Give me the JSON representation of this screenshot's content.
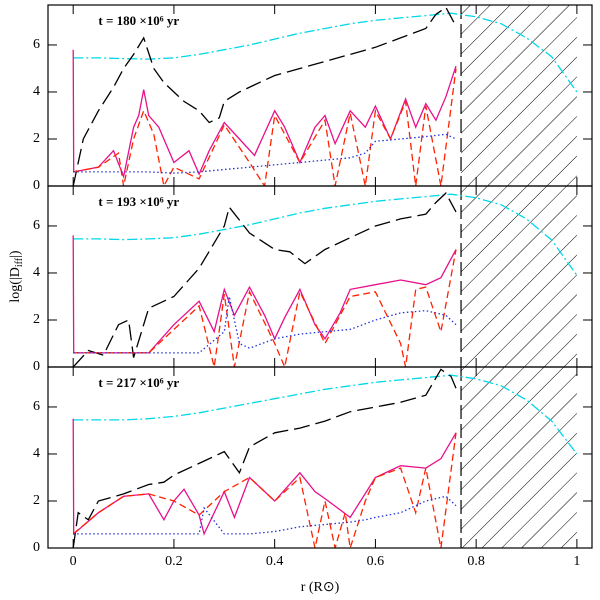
{
  "chart_data": [
    {
      "type": "line",
      "title": "t = 180 ×10⁶ yr",
      "xlim": [
        -0.05,
        1.03
      ],
      "ylim": [
        0,
        7.7
      ],
      "yticks": [
        0,
        2,
        4,
        6
      ],
      "xticks": [
        0,
        0.2,
        0.4,
        0.6,
        0.8,
        1
      ],
      "hatched_region": [
        0.77,
        1.0
      ],
      "series": [
        {
          "color": "#00d8e8",
          "dash": "dashdot",
          "x": [
            0,
            0.05,
            0.1,
            0.15,
            0.2,
            0.25,
            0.3,
            0.35,
            0.4,
            0.45,
            0.5,
            0.55,
            0.6,
            0.65,
            0.7,
            0.75,
            0.8,
            0.85,
            0.9,
            0.95,
            1.0
          ],
          "values": [
            5.45,
            5.45,
            5.42,
            5.4,
            5.45,
            5.6,
            5.8,
            6.0,
            6.25,
            6.5,
            6.7,
            6.9,
            7.05,
            7.15,
            7.25,
            7.35,
            7.2,
            6.9,
            6.3,
            5.5,
            4.0
          ]
        },
        {
          "color": "#000000",
          "dash": "longdash",
          "x": [
            0,
            0.02,
            0.05,
            0.08,
            0.1,
            0.12,
            0.14,
            0.16,
            0.18,
            0.2,
            0.22,
            0.25,
            0.27,
            0.29,
            0.3,
            0.33,
            0.36,
            0.4,
            0.45,
            0.5,
            0.55,
            0.6,
            0.65,
            0.7,
            0.72,
            0.74,
            0.76
          ],
          "values": [
            0,
            2.0,
            3.2,
            4.2,
            5.0,
            5.6,
            6.3,
            5.0,
            4.4,
            4.0,
            3.6,
            3.2,
            2.7,
            2.9,
            3.6,
            4.0,
            4.3,
            4.7,
            5.0,
            5.3,
            5.6,
            5.9,
            6.3,
            6.7,
            7.3,
            7.6,
            6.8
          ]
        },
        {
          "color": "#e8108c",
          "dash": "solid",
          "x": [
            0,
            0.001,
            0.05,
            0.08,
            0.1,
            0.12,
            0.13,
            0.14,
            0.15,
            0.17,
            0.2,
            0.23,
            0.25,
            0.27,
            0.3,
            0.33,
            0.36,
            0.4,
            0.42,
            0.45,
            0.48,
            0.5,
            0.52,
            0.55,
            0.58,
            0.6,
            0.63,
            0.66,
            0.68,
            0.7,
            0.72,
            0.74,
            0.76
          ],
          "values": [
            5.8,
            0.6,
            0.8,
            1.5,
            0.4,
            2.5,
            3.0,
            4.1,
            3.0,
            2.5,
            1.0,
            1.5,
            0.5,
            1.5,
            2.7,
            2.0,
            1.3,
            3.2,
            2.5,
            1.0,
            2.5,
            3.0,
            1.8,
            3.2,
            2.5,
            3.4,
            2.0,
            3.7,
            2.5,
            3.5,
            2.8,
            3.8,
            5.1
          ]
        },
        {
          "color": "#ff2200",
          "dash": "dashed",
          "x": [
            0,
            0.05,
            0.09,
            0.1,
            0.12,
            0.14,
            0.16,
            0.18,
            0.2,
            0.25,
            0.3,
            0.35,
            0.38,
            0.4,
            0.45,
            0.5,
            0.52,
            0.55,
            0.58,
            0.6,
            0.63,
            0.66,
            0.68,
            0.7,
            0.73,
            0.76
          ],
          "values": [
            0.6,
            0.8,
            1.4,
            0,
            2.0,
            3.2,
            2.2,
            0,
            0.8,
            0.3,
            2.6,
            1.0,
            0,
            3.0,
            1.0,
            2.8,
            0,
            3.1,
            0,
            3.2,
            2.0,
            3.6,
            0,
            3.4,
            0,
            5.0
          ]
        },
        {
          "color": "#2233dd",
          "dash": "dotted",
          "x": [
            0,
            0.05,
            0.1,
            0.15,
            0.2,
            0.25,
            0.3,
            0.35,
            0.4,
            0.45,
            0.5,
            0.55,
            0.58,
            0.6,
            0.65,
            0.7,
            0.74,
            0.76
          ],
          "values": [
            0.6,
            0.6,
            0.6,
            0.6,
            0.55,
            0.6,
            0.7,
            0.8,
            0.9,
            1.0,
            1.1,
            1.2,
            1.4,
            1.9,
            2.0,
            2.1,
            2.2,
            2.0
          ]
        }
      ]
    },
    {
      "type": "line",
      "title": "t = 193 ×10⁶ yr",
      "ylabel": [
        "log(|D",
        "iff",
        "|)"
      ],
      "xlim": [
        -0.05,
        1.03
      ],
      "ylim": [
        0,
        7.7
      ],
      "yticks": [
        0,
        2,
        4,
        6
      ],
      "xticks": [
        0,
        0.2,
        0.4,
        0.6,
        0.8,
        1
      ],
      "hatched_region": [
        0.77,
        1.0
      ],
      "series": [
        {
          "color": "#00d8e8",
          "dash": "dashdot",
          "x": [
            0,
            0.05,
            0.1,
            0.15,
            0.2,
            0.25,
            0.3,
            0.35,
            0.4,
            0.45,
            0.5,
            0.55,
            0.6,
            0.65,
            0.7,
            0.75,
            0.8,
            0.85,
            0.9,
            0.95,
            1.0
          ],
          "values": [
            5.45,
            5.45,
            5.42,
            5.45,
            5.5,
            5.65,
            5.85,
            6.05,
            6.3,
            6.55,
            6.75,
            6.9,
            7.05,
            7.15,
            7.25,
            7.35,
            7.2,
            6.9,
            6.3,
            5.4,
            3.9
          ]
        },
        {
          "color": "#000000",
          "dash": "longdash",
          "x": [
            0,
            0.03,
            0.06,
            0.09,
            0.11,
            0.12,
            0.15,
            0.2,
            0.25,
            0.3,
            0.31,
            0.35,
            0.4,
            0.43,
            0.46,
            0.5,
            0.55,
            0.6,
            0.65,
            0.7,
            0.72,
            0.74,
            0.76
          ],
          "values": [
            0,
            0.7,
            0.5,
            1.8,
            2.0,
            0.4,
            2.5,
            3.0,
            4.2,
            6.0,
            6.8,
            5.7,
            5.0,
            4.9,
            4.4,
            5.0,
            5.5,
            6.0,
            6.3,
            6.5,
            7.0,
            7.4,
            6.6
          ]
        },
        {
          "color": "#e8108c",
          "dash": "solid",
          "x": [
            0,
            0.001,
            0.1,
            0.15,
            0.2,
            0.25,
            0.28,
            0.3,
            0.32,
            0.35,
            0.38,
            0.4,
            0.42,
            0.45,
            0.48,
            0.5,
            0.53,
            0.55,
            0.6,
            0.65,
            0.7,
            0.73,
            0.76
          ],
          "values": [
            5.6,
            0.6,
            0.6,
            0.6,
            1.8,
            2.8,
            1.5,
            3.3,
            2.2,
            3.4,
            2.2,
            1.2,
            2.1,
            3.3,
            1.8,
            1.2,
            2.3,
            3.3,
            3.5,
            3.7,
            3.5,
            3.8,
            5.0
          ]
        },
        {
          "color": "#ff2200",
          "dash": "dashed",
          "x": [
            0,
            0.15,
            0.2,
            0.25,
            0.28,
            0.3,
            0.32,
            0.35,
            0.4,
            0.42,
            0.45,
            0.5,
            0.55,
            0.6,
            0.65,
            0.66,
            0.68,
            0.7,
            0.73,
            0.76
          ],
          "values": [
            0.6,
            0.6,
            1.6,
            2.6,
            0,
            3.1,
            0,
            3.2,
            1.0,
            0,
            3.2,
            1.0,
            3.0,
            3.2,
            1.0,
            0,
            3.3,
            3.4,
            1.5,
            5.0
          ]
        },
        {
          "color": "#2233dd",
          "dash": "dotted",
          "x": [
            0,
            0.15,
            0.25,
            0.3,
            0.31,
            0.33,
            0.35,
            0.4,
            0.45,
            0.5,
            0.55,
            0.6,
            0.65,
            0.7,
            0.74,
            0.76
          ],
          "values": [
            0.6,
            0.6,
            0.6,
            1.5,
            3.0,
            1.0,
            0.8,
            1.2,
            1.4,
            1.5,
            1.6,
            2.0,
            2.3,
            2.4,
            2.2,
            1.8
          ]
        }
      ]
    },
    {
      "type": "line",
      "title": "t = 217 ×10⁶ yr",
      "xlabel": "r   (R⊙)",
      "xlim": [
        -0.05,
        1.03
      ],
      "ylim": [
        0,
        7.7
      ],
      "yticks": [
        0,
        2,
        4,
        6
      ],
      "xticks": [
        0,
        0.2,
        0.4,
        0.6,
        0.8,
        1
      ],
      "hatched_region": [
        0.77,
        1.0
      ],
      "series": [
        {
          "color": "#00d8e8",
          "dash": "dashdot",
          "x": [
            0,
            0.05,
            0.1,
            0.15,
            0.2,
            0.25,
            0.3,
            0.35,
            0.4,
            0.45,
            0.5,
            0.55,
            0.6,
            0.65,
            0.7,
            0.75,
            0.8,
            0.85,
            0.9,
            0.95,
            1.0
          ],
          "values": [
            5.45,
            5.45,
            5.45,
            5.5,
            5.6,
            5.75,
            5.95,
            6.15,
            6.35,
            6.55,
            6.75,
            6.9,
            7.05,
            7.15,
            7.25,
            7.35,
            7.2,
            6.9,
            6.3,
            5.4,
            4.0
          ]
        },
        {
          "color": "#000000",
          "dash": "longdash",
          "x": [
            0,
            0.01,
            0.03,
            0.05,
            0.1,
            0.15,
            0.18,
            0.2,
            0.25,
            0.3,
            0.33,
            0.35,
            0.4,
            0.45,
            0.5,
            0.55,
            0.6,
            0.65,
            0.7,
            0.73,
            0.75,
            0.76
          ],
          "values": [
            0,
            1.5,
            1.2,
            2.0,
            2.3,
            2.7,
            2.8,
            3.1,
            3.6,
            4.1,
            3.2,
            4.3,
            4.9,
            5.1,
            5.4,
            5.8,
            6.0,
            6.2,
            6.5,
            7.6,
            7.3,
            6.8
          ]
        },
        {
          "color": "#e8108c",
          "dash": "solid",
          "x": [
            0,
            0.001,
            0.05,
            0.1,
            0.15,
            0.18,
            0.2,
            0.22,
            0.25,
            0.26,
            0.3,
            0.32,
            0.35,
            0.4,
            0.45,
            0.48,
            0.5,
            0.55,
            0.6,
            0.65,
            0.7,
            0.73,
            0.76
          ],
          "values": [
            5.5,
            0.6,
            1.5,
            2.2,
            2.3,
            1.2,
            2.0,
            2.5,
            1.4,
            0.6,
            2.4,
            1.3,
            3.0,
            2.0,
            3.2,
            2.4,
            2.1,
            1.3,
            3.0,
            3.5,
            3.4,
            3.8,
            4.9
          ]
        },
        {
          "color": "#ff2200",
          "dash": "dashed",
          "x": [
            0,
            0.05,
            0.1,
            0.15,
            0.2,
            0.25,
            0.3,
            0.35,
            0.4,
            0.45,
            0.48,
            0.5,
            0.52,
            0.54,
            0.55,
            0.58,
            0.6,
            0.65,
            0.68,
            0.7,
            0.73,
            0.76
          ],
          "values": [
            0.6,
            1.5,
            2.2,
            2.3,
            2.0,
            1.4,
            2.4,
            3.0,
            2.0,
            3.0,
            0,
            2.0,
            0,
            1.5,
            0,
            2.0,
            3.0,
            3.4,
            1.5,
            3.4,
            0,
            4.9
          ]
        },
        {
          "color": "#2233dd",
          "dash": "dotted",
          "x": [
            0,
            0.15,
            0.25,
            0.26,
            0.3,
            0.35,
            0.4,
            0.45,
            0.5,
            0.55,
            0.58,
            0.6,
            0.65,
            0.7,
            0.74,
            0.76
          ],
          "values": [
            0.6,
            0.6,
            0.6,
            1.7,
            0.6,
            0.6,
            0.7,
            0.9,
            1.0,
            1.1,
            1.2,
            1.3,
            1.5,
            2.0,
            2.2,
            1.8
          ]
        }
      ]
    }
  ]
}
